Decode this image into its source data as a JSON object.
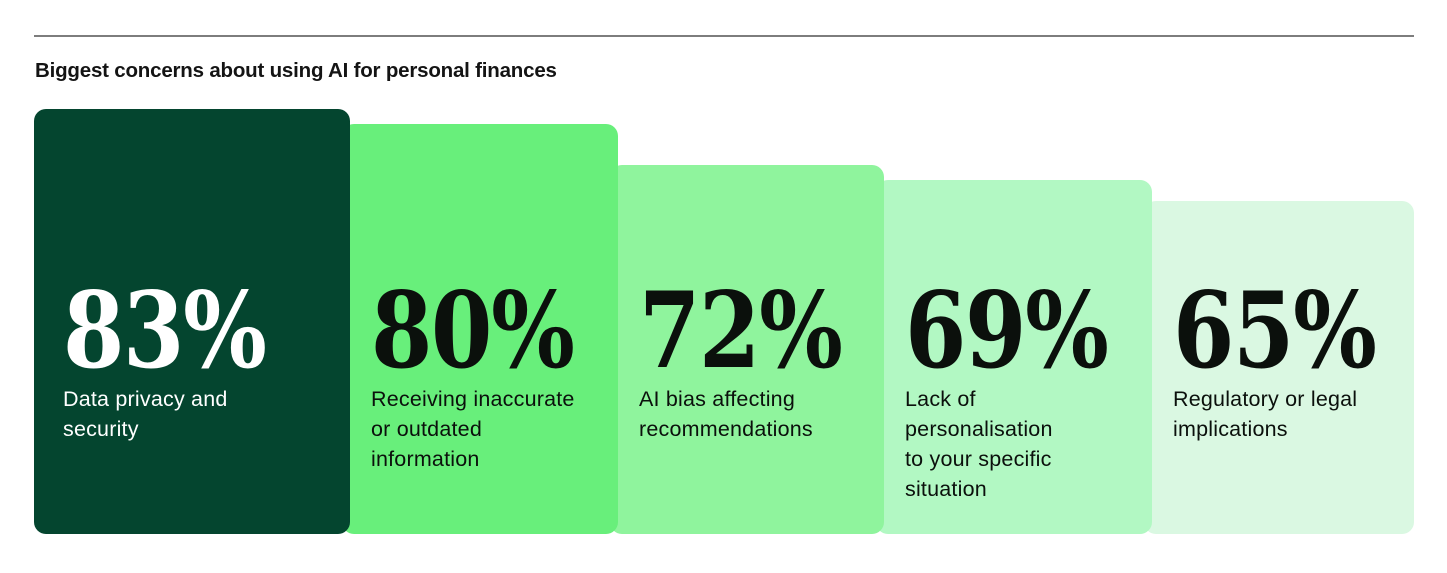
{
  "header": {
    "title": "Biggest concerns about using AI for personal finances",
    "rule_color": "#7d7d7d"
  },
  "chart_data": {
    "type": "bar",
    "title": "Biggest concerns about using AI for personal finances",
    "orientation": "vertical",
    "unit": "%",
    "value_labels": "inside",
    "axes_visible": false,
    "grid": false,
    "legend": "none",
    "categories": [
      "Data privacy and security",
      "Receiving inaccurate or outdated information",
      "AI bias affecting recommendations",
      "Lack of personalisation to your specific situation",
      "Regulatory or legal implications"
    ],
    "values": [
      83,
      80,
      72,
      69,
      65
    ],
    "ylim": [
      0,
      100
    ],
    "palette": [
      "#04452F",
      "#68EF7B",
      "#8FF49D",
      "#B2F8C3",
      "#DAF8E2"
    ],
    "bars": [
      {
        "pct": 83,
        "display": "83%",
        "label": "Data privacy and\nsecurity",
        "bg": "#04452F",
        "text_color": "#FFFFFF"
      },
      {
        "pct": 80,
        "display": "80%",
        "label": "Receiving inaccurate\nor outdated\ninformation",
        "bg": "#68EF7B",
        "text_color": "#0B100C"
      },
      {
        "pct": 72,
        "display": "72%",
        "label": "AI bias affecting\nrecommendations",
        "bg": "#8FF49D",
        "text_color": "#0B100C"
      },
      {
        "pct": 69,
        "display": "69%",
        "label": "Lack of\npersonalisation\nto your specific\nsituation",
        "bg": "#B2F8C3",
        "text_color": "#0B100C"
      },
      {
        "pct": 65,
        "display": "65%",
        "label": "Regulatory or legal\nimplications",
        "bg": "#DAF8E2",
        "text_color": "#0B100C"
      }
    ]
  }
}
